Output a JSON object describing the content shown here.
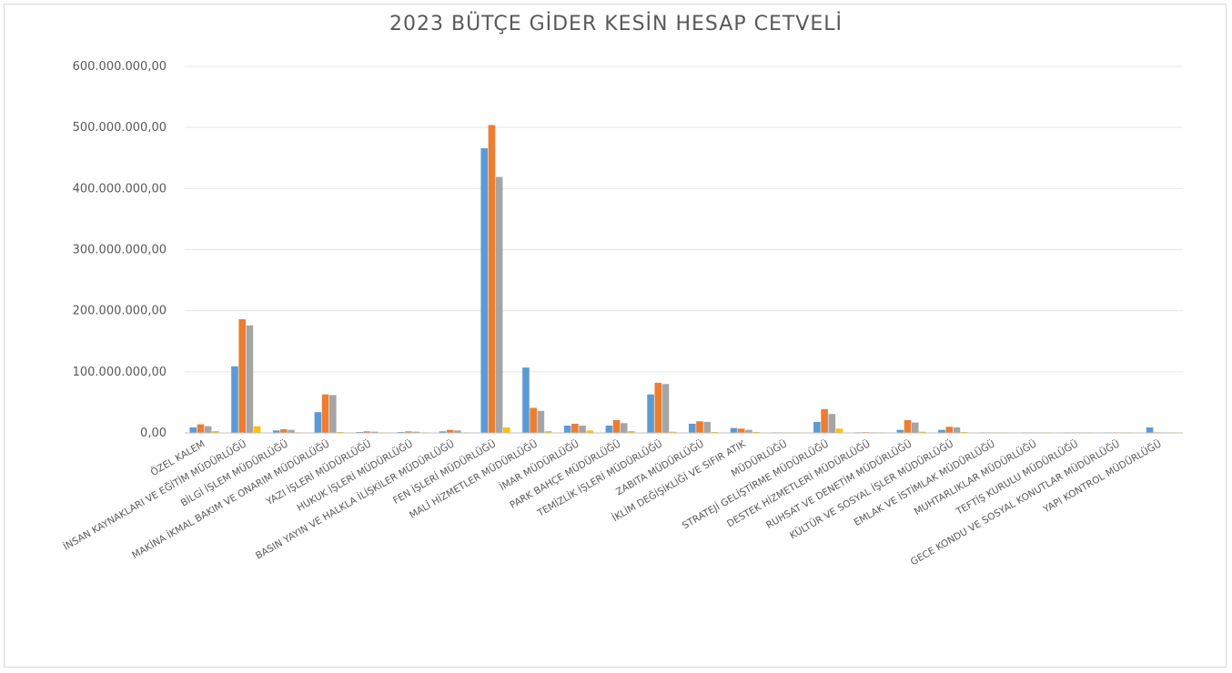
{
  "chart_data": {
    "type": "bar",
    "title": "2023 BÜTÇE GİDER KESİN HESAP CETVELİ",
    "xlabel": "",
    "ylabel": "",
    "ylim": [
      0,
      600000000
    ],
    "yticks": [
      0,
      100000000,
      200000000,
      300000000,
      400000000,
      500000000,
      600000000
    ],
    "ytick_labels": [
      "0,00",
      "100.000.000,00",
      "200.000.000,00",
      "300.000.000,00",
      "400.000.000,00",
      "500.000.000,00",
      "600.000.000,00"
    ],
    "grid": true,
    "legend": "none",
    "categories": [
      "ÖZEL KALEM",
      "İNSAN KAYNAKLARI VE EĞİTİM MÜDÜRLÜĞÜ",
      "BİLGİ İŞLEM MÜDÜRLÜĞÜ",
      "MAKİNA İKMAL BAKIM VE ONARIM MÜDÜRLÜĞÜ",
      "YAZI İŞLERİ MÜDÜRLÜĞÜ",
      "HUKUK İŞLERİ MÜDÜRLÜĞÜ",
      "BASIN YAYIN VE HALKLA İLİŞKİLER MÜDÜRLÜĞÜ",
      "FEN İŞLERİ MÜDÜRLÜĞÜ",
      "MALİ HİZMETLER MÜDÜRLÜĞÜ",
      "İMAR MÜDÜRLÜĞÜ",
      "PARK BAHÇE MÜDÜRLÜĞÜ",
      "TEMİZLİK İŞLERİ MÜDÜRLÜĞÜ",
      "ZABITA MÜDÜRLÜĞÜ",
      "İKLİM DEĞİŞİKLİĞİ VE SIFIR ATIK",
      "MÜDÜRLÜĞÜ",
      "STRATEJİ GELİŞTİRME MÜDÜRLÜĞÜ",
      "DESTEK HİZMETLERİ MÜDÜRLÜĞÜ",
      "RUHSAT VE DENETİM MÜDÜRLÜĞÜ",
      "KÜLTÜR VE SOSYAL İŞLER MÜDÜRLÜĞÜ",
      "EMLAK VE İSTİMLAK MÜDÜRLÜĞÜ",
      "MUHTARLIKLAR MÜDÜRLÜĞÜ",
      "TEFTİŞ KURULU MÜDÜRLÜĞÜ",
      "GECE KONDU VE SOSYAL KONUTLAR MÜDÜRLÜĞÜ",
      "YAPI KONTROL MÜDÜRLÜĞÜ"
    ],
    "series": [
      {
        "color": "#5B9BD5",
        "values": [
          9000000,
          109000000,
          4000000,
          34000000,
          1500000,
          1500000,
          2500000,
          466000000,
          107000000,
          12000000,
          12000000,
          63000000,
          15000000,
          8000000,
          700000,
          18000000,
          1000000,
          5000000,
          5000000,
          500000,
          500000,
          500000,
          500000,
          9000000
        ]
      },
      {
        "color": "#ED7D31",
        "values": [
          14000000,
          186000000,
          6000000,
          63000000,
          2500000,
          2500000,
          5000000,
          504000000,
          41000000,
          15000000,
          21000000,
          82000000,
          19000000,
          7000000,
          800000,
          39000000,
          1200000,
          21000000,
          10000000,
          800000,
          700000,
          600000,
          600000,
          1000000
        ]
      },
      {
        "color": "#A5A5A5",
        "values": [
          11000000,
          176000000,
          5000000,
          62000000,
          2000000,
          2000000,
          4000000,
          419000000,
          36000000,
          12000000,
          16000000,
          80000000,
          18000000,
          5000000,
          700000,
          31000000,
          1000000,
          17000000,
          9000000,
          700000,
          600000,
          500000,
          500000,
          800000
        ]
      },
      {
        "color": "#FFC000",
        "values": [
          3000000,
          11000000,
          1000000,
          1500000,
          400000,
          400000,
          500000,
          9000000,
          3000000,
          4000000,
          3000000,
          2000000,
          1500000,
          1500000,
          200000,
          7000000,
          300000,
          2000000,
          1500000,
          200000,
          200000,
          200000,
          200000,
          300000
        ]
      }
    ]
  }
}
